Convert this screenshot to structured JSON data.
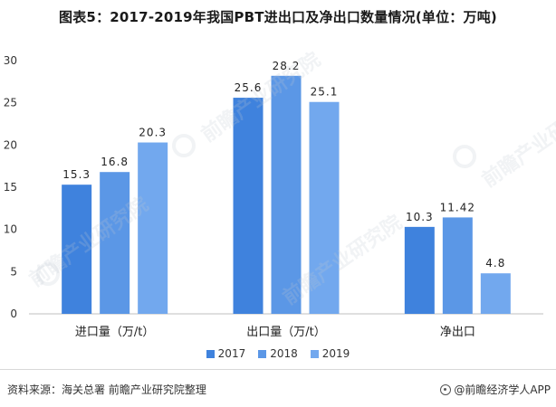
{
  "chart_data": {
    "type": "bar",
    "title": "图表5：2017-2019年我国PBT进出口及净出口数量情况(单位：万吨)",
    "categories": [
      "进口量（万/t）",
      "出口量（万/t）",
      "净出口"
    ],
    "series": [
      {
        "name": "2017",
        "values": [
          15.3,
          25.6,
          10.3
        ],
        "labels": [
          "15.3",
          "25.6",
          "10.3"
        ],
        "color": "#3f82dd"
      },
      {
        "name": "2018",
        "values": [
          16.8,
          28.2,
          11.42
        ],
        "labels": [
          "16.8",
          "28.2",
          "11.42"
        ],
        "color": "#5b97e6"
      },
      {
        "name": "2019",
        "values": [
          20.3,
          25.1,
          4.8
        ],
        "labels": [
          "20.3",
          "25.1",
          "4.8"
        ],
        "color": "#72a8ee"
      }
    ],
    "ylim": [
      0,
      30
    ],
    "yticks": [
      0,
      5,
      10,
      15,
      20,
      25,
      30
    ],
    "xlabel": "",
    "ylabel": "",
    "grid": false,
    "legend": "bottom-center"
  },
  "footer": {
    "source": "资料来源：海关总署 前瞻产业研究院整理",
    "brand": "@前瞻经济学人APP"
  },
  "watermark": {
    "brand_mark": "前瞻产业研究院"
  }
}
